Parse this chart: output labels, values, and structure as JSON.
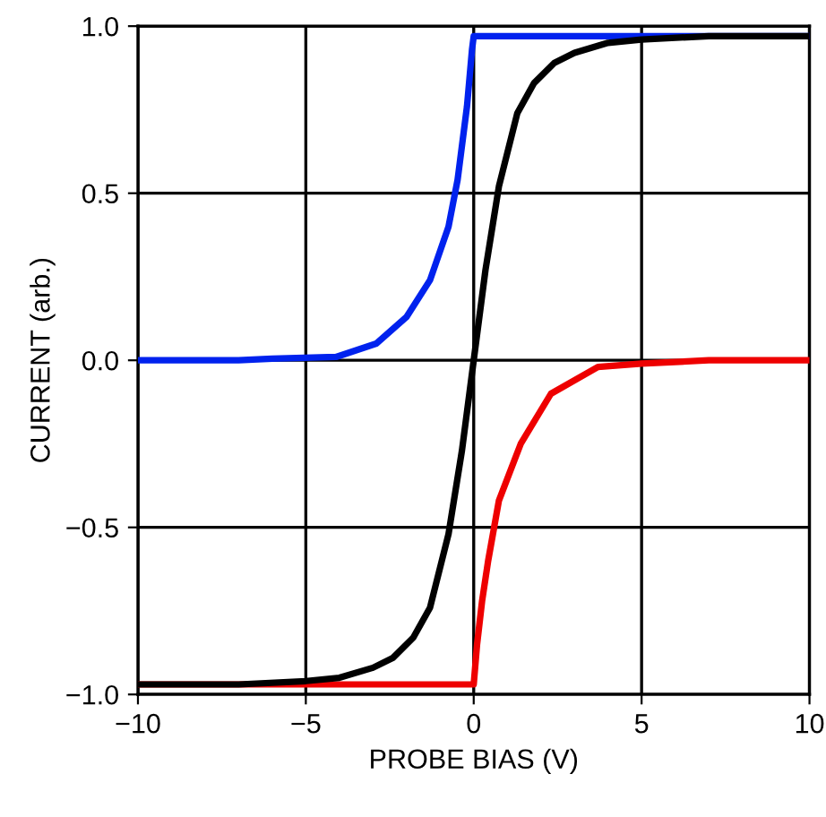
{
  "chart_data": {
    "type": "line",
    "xlabel": "PROBE BIAS (V)",
    "ylabel": "CURRENT (arb.)",
    "xlim": [
      -10,
      10
    ],
    "ylim": [
      -1,
      1
    ],
    "xticks": [
      {
        "value": -10,
        "label": "−10"
      },
      {
        "value": -5,
        "label": "−5"
      },
      0,
      5,
      10
    ],
    "yticks": [
      {
        "value": -1,
        "label": "−1.0"
      },
      {
        "value": -0.5,
        "label": "−0.5"
      },
      {
        "value": 0,
        "label": "0.0"
      },
      {
        "value": 0.5,
        "label": "0.5"
      },
      {
        "value": 1,
        "label": "1.0"
      }
    ],
    "grid": true,
    "marker": "none",
    "line_style": "solid",
    "series": [
      {
        "color": "#0022ee",
        "x": [
          -10,
          -7,
          -6,
          -4.1,
          -2.9,
          -2,
          -1.3,
          -0.75,
          -0.48,
          -0.2,
          -0.05,
          0,
          10
        ],
        "values": [
          0,
          0,
          0.005,
          0.01,
          0.05,
          0.13,
          0.24,
          0.4,
          0.54,
          0.76,
          0.93,
          0.97,
          0.97
        ]
      },
      {
        "color": "#ee0000",
        "x": [
          -10,
          0,
          0.1,
          0.25,
          0.43,
          0.75,
          1.4,
          2.3,
          3.7,
          5,
          7,
          10
        ],
        "values": [
          -0.97,
          -0.97,
          -0.85,
          -0.72,
          -0.6,
          -0.42,
          -0.25,
          -0.1,
          -0.02,
          -0.01,
          0,
          0
        ]
      },
      {
        "color": "#000000",
        "x": [
          -10,
          -7,
          -5,
          -4,
          -3,
          -2.4,
          -1.8,
          -1.3,
          -0.75,
          -0.35,
          0,
          0.35,
          0.75,
          1.3,
          1.8,
          2.4,
          3,
          4,
          5,
          7,
          10
        ],
        "values": [
          -0.97,
          -0.97,
          -0.96,
          -0.95,
          -0.92,
          -0.89,
          -0.83,
          -0.74,
          -0.52,
          -0.27,
          0,
          0.27,
          0.52,
          0.74,
          0.83,
          0.89,
          0.92,
          0.95,
          0.96,
          0.97,
          0.97
        ]
      }
    ]
  }
}
